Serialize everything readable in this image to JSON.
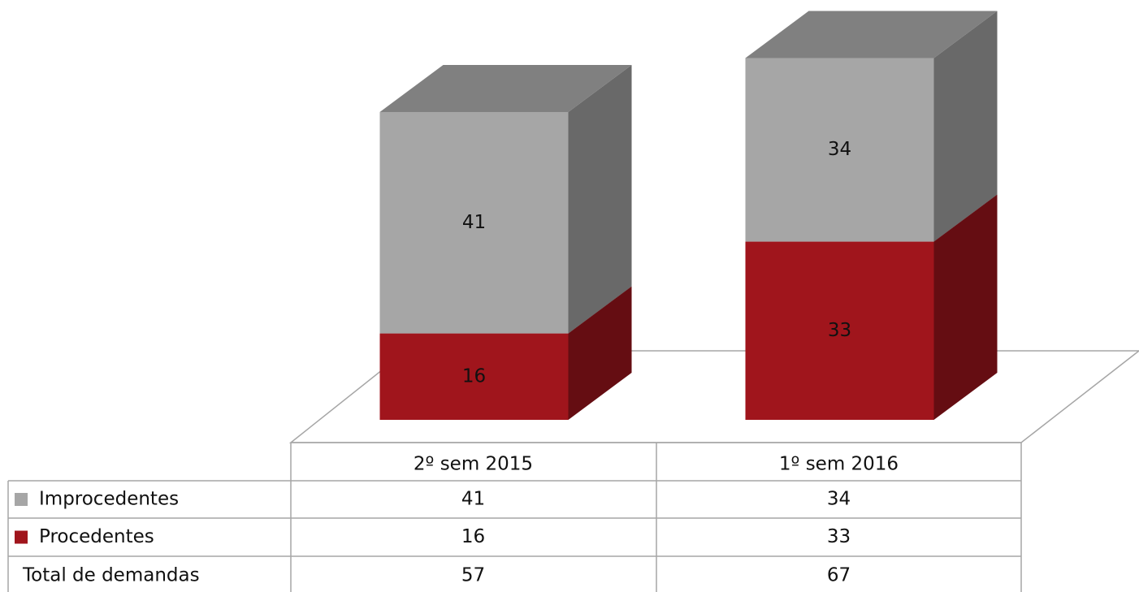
{
  "chart_data": {
    "type": "bar3d_stacked",
    "categories": [
      "2º sem 2015",
      "1º sem 2016"
    ],
    "series": [
      {
        "name": "Improcedentes",
        "color": "#a6a6a6",
        "values": [
          41,
          34
        ]
      },
      {
        "name": "Procedentes",
        "color": "#a0151c",
        "values": [
          16,
          33
        ]
      }
    ],
    "total_row": {
      "label": "Total de demandas",
      "values": [
        57,
        67
      ]
    },
    "data_labels": true
  }
}
